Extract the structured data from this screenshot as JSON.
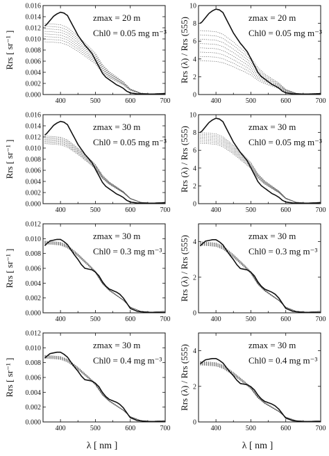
{
  "x_axis_label": "λ [ nm ]",
  "chart_data": [
    {
      "type": "line",
      "column": "left",
      "row": 0,
      "ylabel": "Rrs [ sr⁻¹ ]",
      "ylim": [
        0,
        0.016
      ],
      "yticks": [
        0.0,
        0.002,
        0.004,
        0.006,
        0.008,
        0.01,
        0.012,
        0.014,
        0.016
      ],
      "ytick_decimals": 3,
      "xlim": [
        350,
        700
      ],
      "xticks": [
        400,
        500,
        600,
        700
      ],
      "annotation": {
        "zmax": "20 m",
        "chl0": "0.05 mg m⁻³"
      },
      "series": [
        {
          "style": "solid",
          "peak": 0.0148
        },
        {
          "style": "dotted",
          "count": 8,
          "start_max": 0.0128,
          "start_min": 0.0095
        }
      ]
    },
    {
      "type": "line",
      "column": "right",
      "row": 0,
      "ylabel": "Rrs (λ) / Rrs (555)",
      "ylim": [
        0,
        10
      ],
      "yticks": [
        0,
        2,
        4,
        6,
        8,
        10
      ],
      "ytick_decimals": 0,
      "xlim": [
        350,
        700
      ],
      "xticks": [
        400,
        500,
        600,
        700
      ],
      "annotation": {
        "zmax": "20 m",
        "chl0": "0.05 mg m⁻³"
      },
      "series": [
        {
          "style": "solid",
          "peak": 9.6
        },
        {
          "style": "dotted",
          "count": 8,
          "start_max": 7.2,
          "start_min": 3.8
        }
      ]
    },
    {
      "type": "line",
      "column": "left",
      "row": 1,
      "ylabel": "Rrs [ sr⁻¹ ]",
      "ylim": [
        0,
        0.016
      ],
      "yticks": [
        0.0,
        0.002,
        0.004,
        0.006,
        0.008,
        0.01,
        0.012,
        0.014,
        0.016
      ],
      "ytick_decimals": 3,
      "xlim": [
        350,
        700
      ],
      "xticks": [
        400,
        500,
        600,
        700
      ],
      "annotation": {
        "zmax": "30 m",
        "chl0": "0.05 mg m⁻³"
      },
      "series": [
        {
          "style": "solid",
          "peak": 0.0148
        },
        {
          "style": "dotted",
          "count": 8,
          "start_max": 0.0122,
          "start_min": 0.0108
        }
      ]
    },
    {
      "type": "line",
      "column": "right",
      "row": 1,
      "ylabel": "Rrs (λ) / Rrs (555)",
      "ylim": [
        0,
        10
      ],
      "yticks": [
        0,
        2,
        4,
        6,
        8,
        10
      ],
      "ytick_decimals": 0,
      "xlim": [
        350,
        700
      ],
      "xticks": [
        400,
        500,
        600,
        700
      ],
      "annotation": {
        "zmax": "30 m",
        "chl0": "0.05 mg m⁻³"
      },
      "series": [
        {
          "style": "solid",
          "peak": 9.6
        },
        {
          "style": "dotted",
          "count": 8,
          "start_max": 8.0,
          "start_min": 6.8
        }
      ]
    },
    {
      "type": "line",
      "column": "left",
      "row": 2,
      "ylabel": "Rrs [ sr⁻¹ ]",
      "ylim": [
        0,
        0.012
      ],
      "yticks": [
        0.0,
        0.002,
        0.004,
        0.006,
        0.008,
        0.01,
        0.012
      ],
      "ytick_decimals": 3,
      "xlim": [
        350,
        700
      ],
      "xticks": [
        400,
        500,
        600,
        700
      ],
      "annotation": {
        "zmax": "30 m",
        "chl0": "0.3 mg m⁻³"
      },
      "series": [
        {
          "style": "solid",
          "peak": 0.01
        },
        {
          "style": "dotted",
          "count": 8,
          "start_max": 0.0097,
          "start_min": 0.0093
        }
      ]
    },
    {
      "type": "line",
      "column": "right",
      "row": 2,
      "ylabel": "Rrs (λ) / Rrs (555)",
      "ylim": [
        0,
        5
      ],
      "yticks": [
        0,
        2,
        4
      ],
      "ytick_decimals": 0,
      "xlim": [
        350,
        700
      ],
      "xticks": [
        400,
        500,
        600,
        700
      ],
      "annotation": {
        "zmax": "30 m",
        "chl0": "0.3 mg m⁻³"
      },
      "series": [
        {
          "style": "solid",
          "peak": 4.15
        },
        {
          "style": "dotted",
          "count": 8,
          "start_max": 4.0,
          "start_min": 3.8
        }
      ]
    },
    {
      "type": "line",
      "column": "left",
      "row": 3,
      "ylabel": "Rrs [ sr⁻¹ ]",
      "ylim": [
        0,
        0.012
      ],
      "yticks": [
        0.0,
        0.002,
        0.004,
        0.006,
        0.008,
        0.01,
        0.012
      ],
      "ytick_decimals": 3,
      "xlim": [
        350,
        700
      ],
      "xticks": [
        400,
        500,
        600,
        700
      ],
      "annotation": {
        "zmax": "30 m",
        "chl0": "0.4 mg m⁻³"
      },
      "series": [
        {
          "style": "solid",
          "peak": 0.0095
        },
        {
          "style": "dotted",
          "count": 8,
          "start_max": 0.009,
          "start_min": 0.0086
        }
      ]
    },
    {
      "type": "line",
      "column": "right",
      "row": 3,
      "ylabel": "Rrs (λ) / Rrs (555)",
      "ylim": [
        0,
        5
      ],
      "yticks": [
        0,
        2,
        4
      ],
      "ytick_decimals": 0,
      "xlim": [
        350,
        700
      ],
      "xticks": [
        400,
        500,
        600,
        700
      ],
      "annotation": {
        "zmax": "30 m",
        "chl0": "0.4 mg m⁻³"
      },
      "series": [
        {
          "style": "solid",
          "peak": 3.6
        },
        {
          "style": "dotted",
          "count": 8,
          "start_max": 3.4,
          "start_min": 3.2
        }
      ]
    }
  ]
}
